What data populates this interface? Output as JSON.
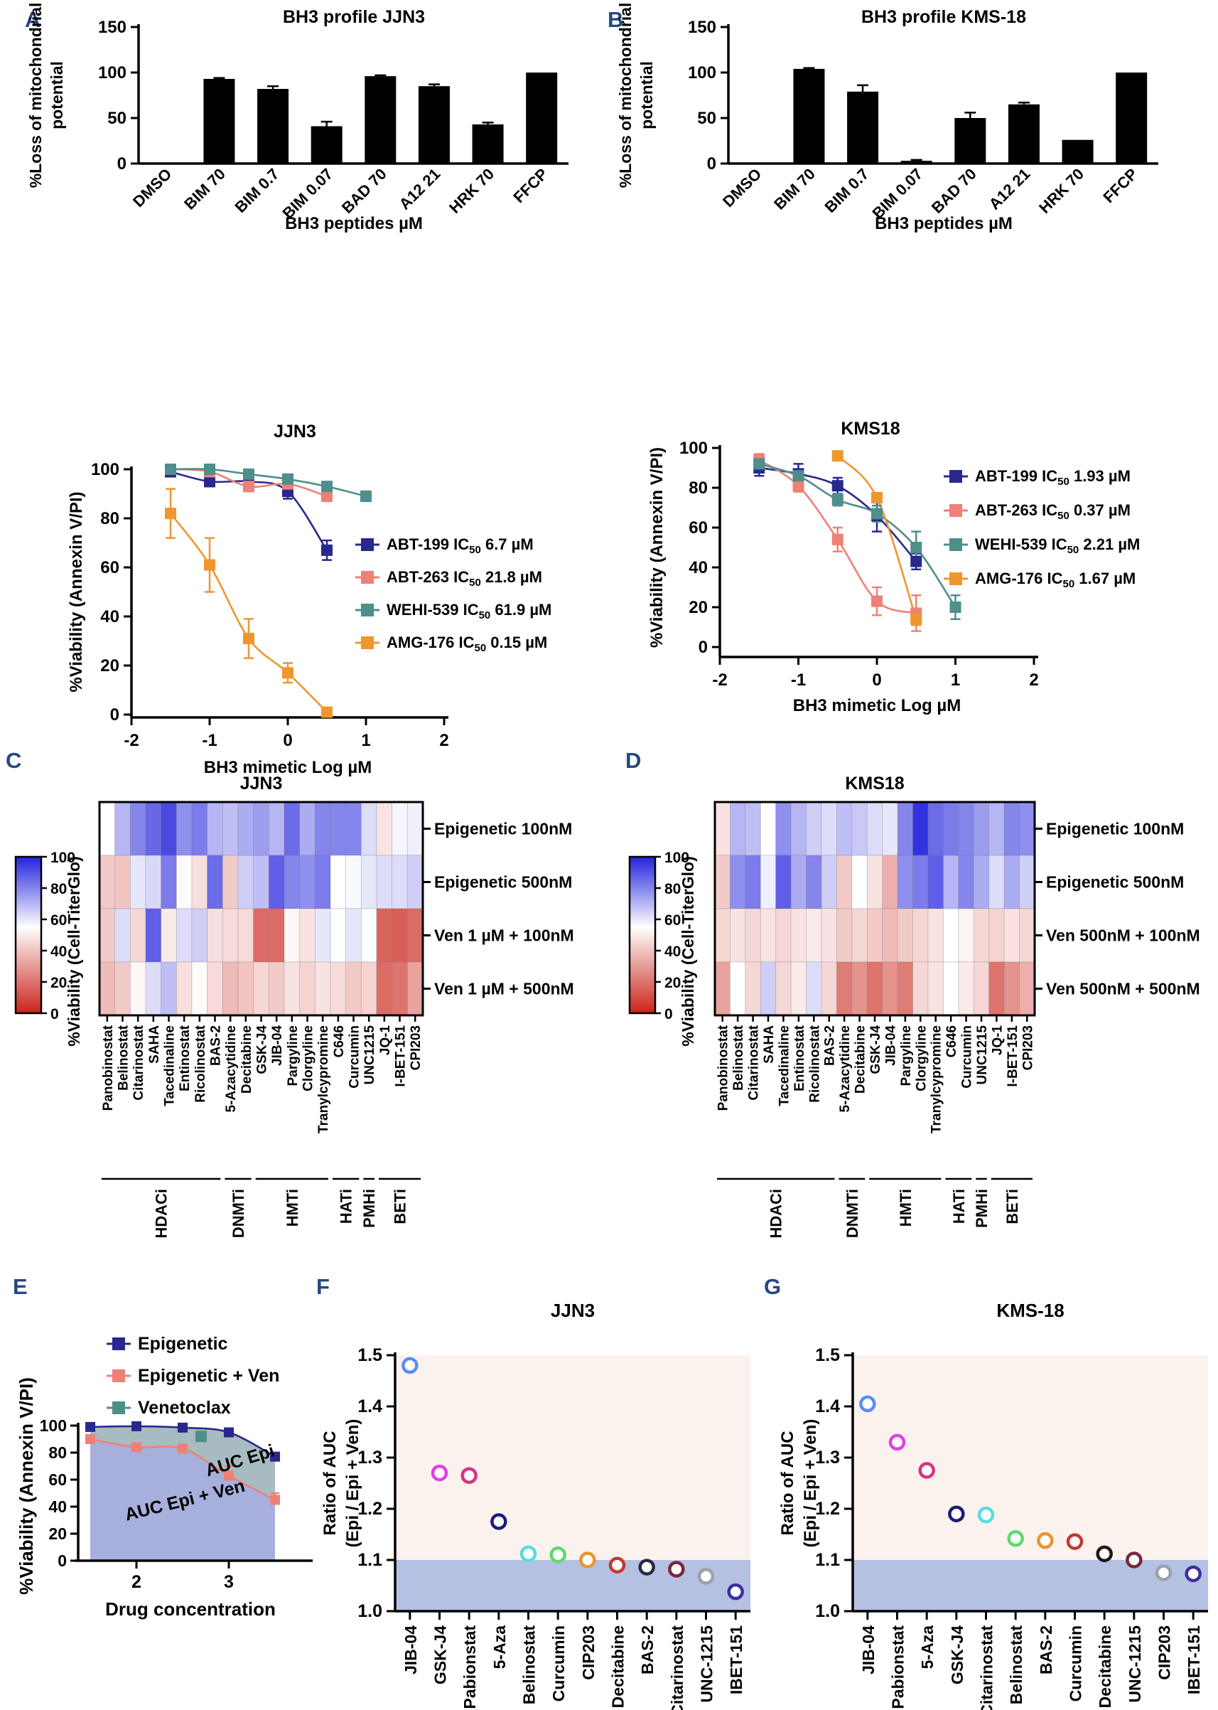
{
  "chart_data": [
    {
      "id": "bar-bh3-jjn3",
      "type": "bar",
      "letter": "A",
      "title": "BH3 profile JJN3",
      "ylabel_lines": [
        "%Loss of mitochondrial",
        "potential"
      ],
      "xlabel": "BH3 peptides µM",
      "yticks": [
        0,
        50,
        100,
        150
      ],
      "ylim": [
        0,
        150
      ],
      "categories": [
        "DMSO",
        "BIM 70",
        "BIM 0.7",
        "BIM 0.07",
        "BAD 70",
        "A12 21",
        "HRK 70",
        "FFCP"
      ],
      "values": [
        0,
        93,
        82,
        41,
        96,
        85,
        43,
        100
      ],
      "errors": [
        0,
        1,
        3,
        5,
        1,
        2,
        2,
        0
      ],
      "bar_color": "#000000"
    },
    {
      "id": "bar-bh3-kms18",
      "type": "bar",
      "letter": "B",
      "title": "BH3 profile KMS-18",
      "ylabel_lines": [
        "%Loss of mitochondrial",
        "potential"
      ],
      "xlabel": "BH3 peptides µM",
      "yticks": [
        0,
        50,
        100,
        150
      ],
      "ylim": [
        0,
        150
      ],
      "categories": [
        "DMSO",
        "BIM 70",
        "BIM 0.7",
        "BIM 0.07",
        "BAD 70",
        "A12 21",
        "HRK 70",
        "FFCP"
      ],
      "values": [
        0,
        104,
        79,
        3,
        50,
        65,
        26,
        100
      ],
      "errors": [
        0,
        1,
        7,
        1,
        6,
        2,
        0,
        0
      ],
      "bar_color": "#000000"
    },
    {
      "id": "dose-jjn3",
      "type": "line",
      "letter": "",
      "title": "JJN3",
      "ylabel": "%Viability (Annexin V/PI)",
      "xlabel": "BH3 mimetic Log  µM",
      "xticks": [
        -2,
        -1,
        0,
        1,
        2
      ],
      "yticks": [
        0,
        20,
        40,
        60,
        80,
        100
      ],
      "xlim": [
        -2,
        2
      ],
      "ylim": [
        0,
        100
      ],
      "series": [
        {
          "name": "ABT-199",
          "ic50": "6.7 µM",
          "color": "#28288E",
          "x": [
            -1.5,
            -1,
            -0.5,
            0,
            0.5
          ],
          "y": [
            99,
            95,
            95,
            91,
            67
          ],
          "err": [
            2,
            2,
            2,
            3,
            4
          ]
        },
        {
          "name": "ABT-263",
          "ic50": "21.8 µM",
          "color": "#ED8176",
          "x": [
            -1.5,
            -1,
            -0.5,
            0,
            0.5
          ],
          "y": [
            100,
            99,
            93,
            94,
            89
          ],
          "err": [
            2,
            1,
            2,
            2,
            2
          ]
        },
        {
          "name": "WEHI-539",
          "ic50": "61.9 µM",
          "color": "#4E8E8B",
          "x": [
            -1.5,
            -1,
            -0.5,
            0,
            0.5,
            1
          ],
          "y": [
            100,
            100,
            98,
            96,
            93,
            89
          ],
          "err": [
            1,
            1,
            1,
            1,
            1,
            2
          ]
        },
        {
          "name": "AMG-176",
          "ic50": "0.15 µM",
          "color": "#F0962F",
          "x": [
            -1.5,
            -1,
            -0.5,
            0,
            0.5
          ],
          "y": [
            82,
            61,
            31,
            17,
            1
          ],
          "err": [
            10,
            11,
            8,
            4,
            1
          ]
        }
      ]
    },
    {
      "id": "dose-kms18",
      "type": "line",
      "letter": "",
      "title": "KMS18",
      "ylabel": "%Viability (Annexin V/PI)",
      "xlabel": "BH3 mimetic Log  µM",
      "xticks": [
        -2,
        -1,
        0,
        1,
        2
      ],
      "yticks": [
        0,
        20,
        40,
        60,
        80,
        100
      ],
      "xlim": [
        -2,
        2
      ],
      "ylim": [
        0,
        100
      ],
      "series": [
        {
          "name": "ABT-199",
          "ic50": "1.93 µM",
          "color": "#28288E",
          "x": [
            -1.5,
            -1,
            -0.5,
            0,
            0.5
          ],
          "y": [
            90,
            87,
            81,
            66,
            43
          ],
          "err": [
            4,
            5,
            4,
            8,
            4
          ]
        },
        {
          "name": "ABT-263",
          "ic50": "0.37 µM",
          "color": "#ED8176",
          "x": [
            -1.5,
            -1,
            -0.5,
            0,
            0.5
          ],
          "y": [
            94,
            81,
            54,
            23,
            17
          ],
          "err": [
            3,
            3,
            6,
            7,
            9
          ]
        },
        {
          "name": "WEHI-539",
          "ic50": "2.21 µM",
          "color": "#4E8E8B",
          "x": [
            -1.5,
            -1,
            -0.5,
            0,
            0.5,
            1
          ],
          "y": [
            92,
            86,
            74,
            67,
            50,
            20
          ],
          "err": [
            2,
            3,
            3,
            4,
            8,
            6
          ]
        },
        {
          "name": "AMG-176",
          "ic50": "1.67 µM",
          "color": "#F0962F",
          "x": [
            -0.5,
            0,
            0.5
          ],
          "y": [
            96,
            75,
            14
          ],
          "err": [
            1,
            2,
            3
          ]
        }
      ]
    },
    {
      "id": "heatmap-jjn3",
      "type": "heatmap",
      "letter": "C",
      "title": "JJN3",
      "colorbar_label": "%Viability (Cell-TiterGlo)",
      "colorbar_ticks": [
        100,
        80,
        60,
        40,
        20,
        0
      ],
      "color_high": "#2323DD",
      "color_mid": "#FFFFFF",
      "color_low": "#CA241A",
      "rows": [
        "Epigenetic 100nM",
        "Epigenetic 500nM",
        "Ven 1 µM + 100nM",
        "Ven 1 µM + 500nM"
      ],
      "columns": [
        "Panobinostat",
        "Belinostat",
        "Citarinostat",
        "SAHA",
        "Tacedinaline",
        "Entinostat",
        "Ricolinostat",
        "BAS-2",
        "5-Azacytidine",
        "Decitabine",
        "GSK-J4",
        "JIB-04",
        "Pargyline",
        "Clorgyline",
        "Tranylcypromine",
        "C646",
        "Curcumin",
        "UNC1215",
        "JQ-1",
        "I-BET-151",
        "CPI203"
      ],
      "groups": [
        {
          "name": "HDACi",
          "start": 0,
          "end": 7
        },
        {
          "name": "DNMTi",
          "start": 8,
          "end": 9
        },
        {
          "name": "HMTi",
          "start": 10,
          "end": 14
        },
        {
          "name": "HATi",
          "start": 15,
          "end": 16
        },
        {
          "name": "PMHi",
          "start": 17,
          "end": 17
        },
        {
          "name": "BETi",
          "start": 18,
          "end": 20
        }
      ],
      "values": [
        [
          55,
          70,
          80,
          86,
          92,
          78,
          82,
          70,
          68,
          72,
          75,
          70,
          85,
          72,
          80,
          80,
          80,
          62,
          48,
          57,
          58
        ],
        [
          42,
          40,
          60,
          63,
          82,
          54,
          47,
          85,
          42,
          65,
          68,
          88,
          80,
          78,
          82,
          55,
          56,
          60,
          62,
          62,
          65
        ],
        [
          42,
          62,
          45,
          88,
          50,
          62,
          65,
          47,
          46,
          46,
          18,
          18,
          53,
          48,
          60,
          55,
          60,
          55,
          16,
          15,
          18
        ],
        [
          38,
          42,
          53,
          62,
          68,
          47,
          54,
          46,
          38,
          40,
          45,
          42,
          48,
          44,
          48,
          46,
          42,
          44,
          18,
          20,
          32
        ]
      ]
    },
    {
      "id": "heatmap-kms18",
      "type": "heatmap",
      "letter": "D",
      "title": "KMS18",
      "colorbar_label": "%Viability (Cell-TiterGlo)",
      "colorbar_ticks": [
        100,
        80,
        60,
        40,
        20,
        0
      ],
      "color_high": "#2323DD",
      "color_mid": "#FFFFFF",
      "color_low": "#CA241A",
      "rows": [
        "Epigenetic 100nM",
        "Epigenetic 500nM",
        "Ven 500nM + 100nM",
        "Ven 500nM + 500nM"
      ],
      "columns": [
        "Panobinostat",
        "Belinostat",
        "Citarinostat",
        "SAHA",
        "Tacedinaline",
        "Entinostat",
        "Ricolinostat",
        "BAS-2",
        "5-Azacytidine",
        "Decitabine",
        "GSK-J4",
        "JIB-04",
        "Pargyline",
        "Clorgyline",
        "Tranylcypromine",
        "C646",
        "Curcumin",
        "UNC1215",
        "JQ-1",
        "I-BET-151",
        "CPI203"
      ],
      "groups": [
        {
          "name": "HDACi",
          "start": 0,
          "end": 7
        },
        {
          "name": "DNMTi",
          "start": 8,
          "end": 9
        },
        {
          "name": "HMTi",
          "start": 10,
          "end": 14
        },
        {
          "name": "HATi",
          "start": 15,
          "end": 16
        },
        {
          "name": "PMHi",
          "start": 17,
          "end": 17
        },
        {
          "name": "BETi",
          "start": 18,
          "end": 20
        }
      ],
      "values": [
        [
          48,
          70,
          68,
          55,
          78,
          70,
          65,
          62,
          68,
          66,
          62,
          60,
          80,
          97,
          85,
          82,
          80,
          75,
          70,
          80,
          78
        ],
        [
          42,
          78,
          82,
          58,
          88,
          72,
          80,
          65,
          42,
          55,
          48,
          35,
          78,
          82,
          88,
          70,
          80,
          72,
          62,
          72,
          65
        ],
        [
          45,
          48,
          45,
          48,
          45,
          48,
          50,
          48,
          42,
          45,
          42,
          38,
          42,
          45,
          48,
          55,
          52,
          45,
          44,
          48,
          45
        ],
        [
          32,
          55,
          45,
          65,
          45,
          50,
          62,
          45,
          22,
          28,
          20,
          28,
          22,
          45,
          48,
          55,
          50,
          45,
          20,
          28,
          35
        ]
      ]
    },
    {
      "id": "auc-schematic",
      "type": "area",
      "letter": "E",
      "ylabel": "%Viability (Annexin V/PI)",
      "xlabel": "Drug concentration",
      "xticks": [
        2,
        3
      ],
      "yticks": [
        0,
        20,
        40,
        60,
        80,
        100
      ],
      "ylim": [
        0,
        100
      ],
      "legend": [
        {
          "label": "Epigenetic",
          "color": "#28288E"
        },
        {
          "label": "Epigenetic + Ven",
          "color": "#ED8176"
        },
        {
          "label": "Venetoclax",
          "color": "#4E8E8B"
        }
      ],
      "epigenetic": {
        "x": [
          1.5,
          2,
          2.5,
          3,
          3.5
        ],
        "y": [
          99,
          99.5,
          98.5,
          95,
          77
        ]
      },
      "epigenetic_ven": {
        "x": [
          1.5,
          2,
          2.5,
          3,
          3.5
        ],
        "y": [
          90,
          84,
          83,
          63,
          45
        ],
        "err": [
          1,
          2,
          2,
          7,
          5
        ]
      },
      "venetoclax_point": {
        "x": 2.7,
        "y": 92
      },
      "area_labels": [
        "AUC Epi",
        "AUC Epi + Ven"
      ],
      "area_epi_color": "#9FB4B9",
      "area_epi_ven_color": "#98A1D6"
    },
    {
      "id": "auc-ratio-jjn3",
      "type": "scatter",
      "letter": "F",
      "title": "JJN3",
      "ylabel_lines": [
        "Ratio of AUC",
        "(Epi / Epi + Ven)"
      ],
      "yticks": [
        1.0,
        1.1,
        1.2,
        1.3,
        1.4,
        1.5
      ],
      "ylim": [
        1.0,
        1.5
      ],
      "band_top": 1.1,
      "band_color": "#B5C1E3",
      "bg_color": "#FBF2EE",
      "points": [
        {
          "name": "JIB-04",
          "value": 1.48,
          "color": "#5B8DEF"
        },
        {
          "name": "GSK-J4",
          "value": 1.27,
          "color": "#E23FE2"
        },
        {
          "name": "Pabionstat",
          "value": 1.265,
          "color": "#D63384"
        },
        {
          "name": "5-Aza",
          "value": 1.175,
          "color": "#1C1C7A"
        },
        {
          "name": "Belinostat",
          "value": 1.112,
          "color": "#55DDE0"
        },
        {
          "name": "Curcumin",
          "value": 1.11,
          "color": "#5FD96E"
        },
        {
          "name": "CIP203",
          "value": 1.1,
          "color": "#E8952F"
        },
        {
          "name": "Decitabine",
          "value": 1.09,
          "color": "#C13A32"
        },
        {
          "name": "BAS-2",
          "value": 1.086,
          "color": "#2B2B3D"
        },
        {
          "name": "Citarinostat",
          "value": 1.082,
          "color": "#77263C"
        },
        {
          "name": "UNC-1215",
          "value": 1.068,
          "color": "#9AA1AA"
        },
        {
          "name": "IBET-151",
          "value": 1.038,
          "color": "#3D2F9E"
        }
      ]
    },
    {
      "id": "auc-ratio-kms18",
      "type": "scatter",
      "letter": "G",
      "title": "KMS-18",
      "ylabel_lines": [
        "Ratio of AUC",
        "(Epi / Epi + Ven)"
      ],
      "yticks": [
        1.0,
        1.1,
        1.2,
        1.3,
        1.4,
        1.5
      ],
      "ylim": [
        1.0,
        1.5
      ],
      "band_top": 1.1,
      "band_color": "#B5C1E3",
      "bg_color": "#FBF2EE",
      "points": [
        {
          "name": "JIB-04",
          "value": 1.405,
          "color": "#5B8DEF"
        },
        {
          "name": "Pabionstat",
          "value": 1.33,
          "color": "#E23FE2"
        },
        {
          "name": "5-Aza",
          "value": 1.275,
          "color": "#D63384"
        },
        {
          "name": "GSK-J4",
          "value": 1.19,
          "color": "#1C1C7A"
        },
        {
          "name": "Citarinostat",
          "value": 1.188,
          "color": "#55DDE0"
        },
        {
          "name": "Belinostat",
          "value": 1.142,
          "color": "#5FD96E"
        },
        {
          "name": "BAS-2",
          "value": 1.138,
          "color": "#E8952F"
        },
        {
          "name": "Curcumin",
          "value": 1.136,
          "color": "#C13A32"
        },
        {
          "name": "Decitabine",
          "value": 1.112,
          "color": "#1A1A1A"
        },
        {
          "name": "UNC-1215",
          "value": 1.1,
          "color": "#77263C"
        },
        {
          "name": "CIP203",
          "value": 1.075,
          "color": "#9AA1AA"
        },
        {
          "name": "IBET-151",
          "value": 1.073,
          "color": "#3D2F9E"
        }
      ]
    }
  ]
}
